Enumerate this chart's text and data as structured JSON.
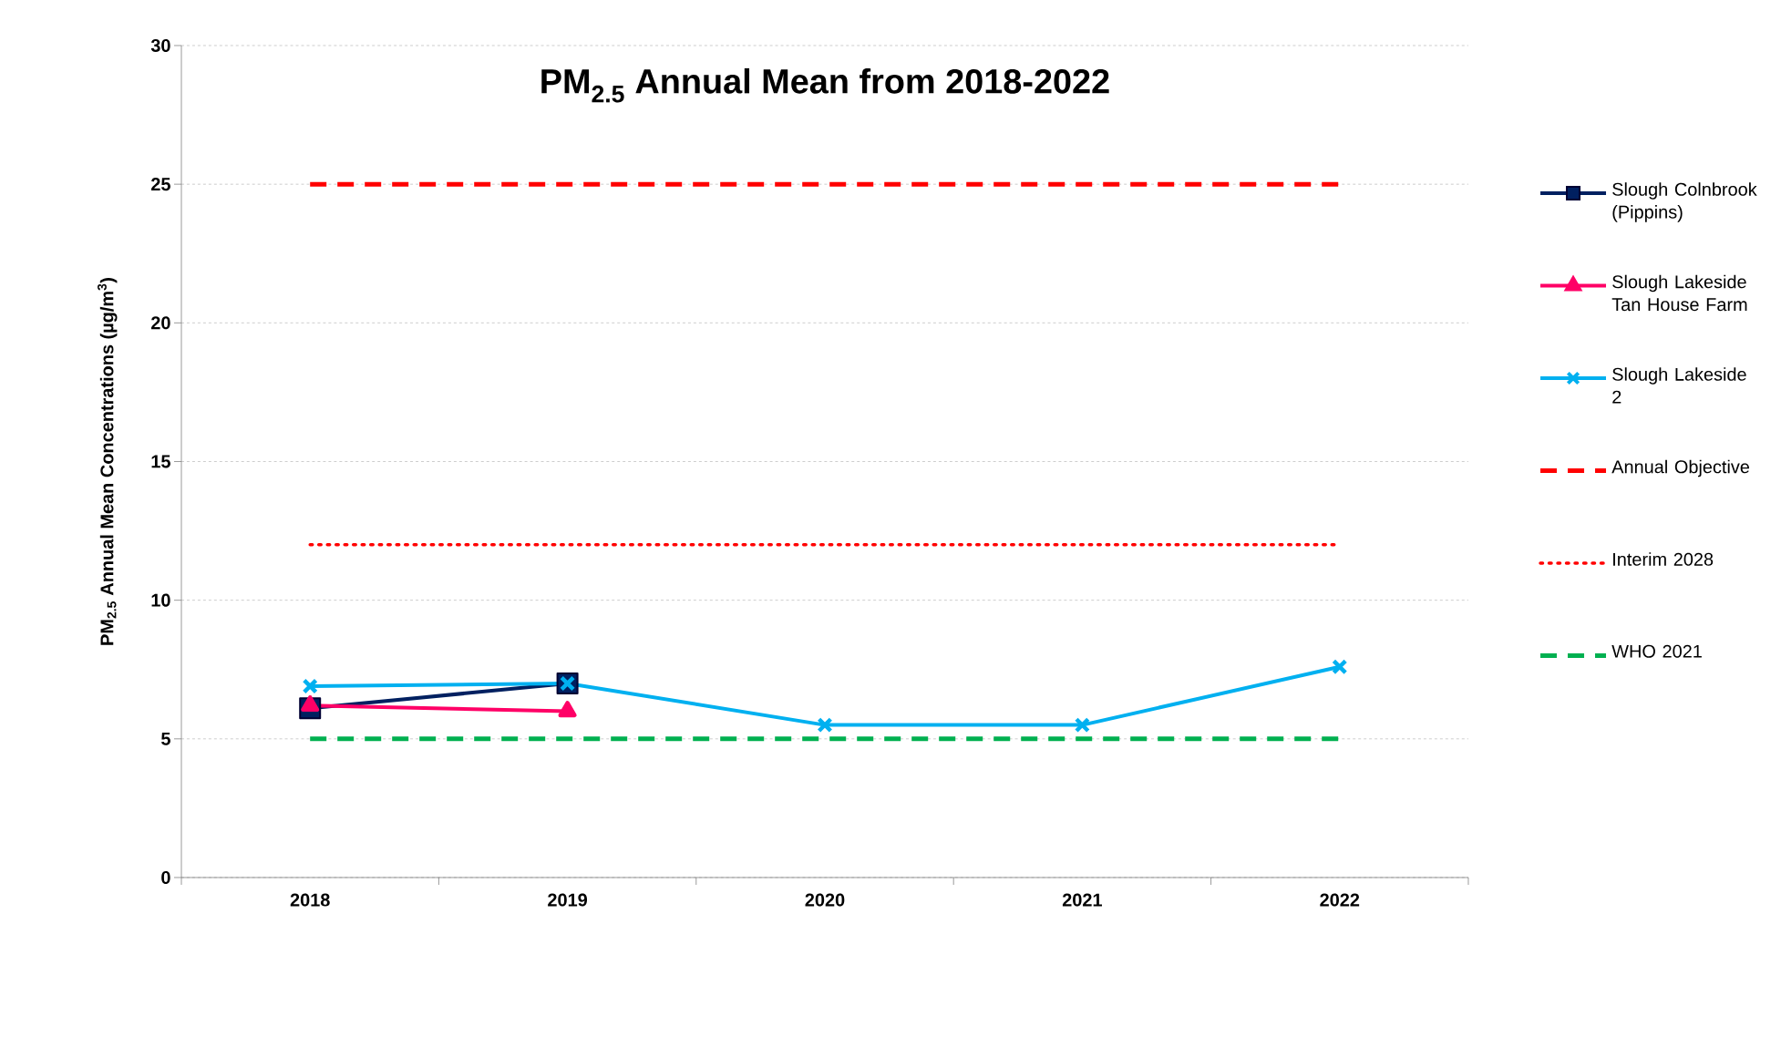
{
  "chart_data": {
    "type": "line",
    "title": "PM$_{2.5}$ Annual Mean from 2018-2022",
    "ylabel": "PM$_{2.5}$ Annual Mean Concentrations (µg/m$^{3}$)",
    "categories": [
      "2018",
      "2019",
      "2020",
      "2021",
      "2022"
    ],
    "series": [
      {
        "name": "Slough Colnbrook (Pippins)",
        "color": "#002060",
        "marker": "square",
        "line_style": "solid",
        "values": [
          6.1,
          7.0,
          null,
          null,
          null
        ]
      },
      {
        "name": "Slough Lakeside Tan House Farm",
        "color": "#ff0066",
        "marker": "triangle",
        "line_style": "solid",
        "values": [
          6.2,
          6.0,
          null,
          null,
          null
        ]
      },
      {
        "name": "Slough Lakeside 2",
        "color": "#00b0f0",
        "marker": "cross",
        "line_style": "solid",
        "values": [
          6.9,
          7.0,
          5.5,
          5.5,
          7.6
        ]
      },
      {
        "name": "Annual Objective",
        "color": "#ff0000",
        "marker": "none",
        "line_style": "dashed",
        "values": [
          25,
          25,
          25,
          25,
          25
        ]
      },
      {
        "name": "Interim 2028",
        "color": "#ff0000",
        "marker": "none",
        "line_style": "dotted",
        "values": [
          12,
          12,
          12,
          12,
          12
        ]
      },
      {
        "name": "WHO 2021",
        "color": "#00b050",
        "marker": "none",
        "line_style": "dashed",
        "values": [
          5,
          5,
          5,
          5,
          5
        ]
      }
    ],
    "ylim": [
      0,
      30
    ],
    "yticks": [
      0,
      5,
      10,
      15,
      20,
      25,
      30
    ],
    "grid": "y",
    "legend": "right"
  }
}
